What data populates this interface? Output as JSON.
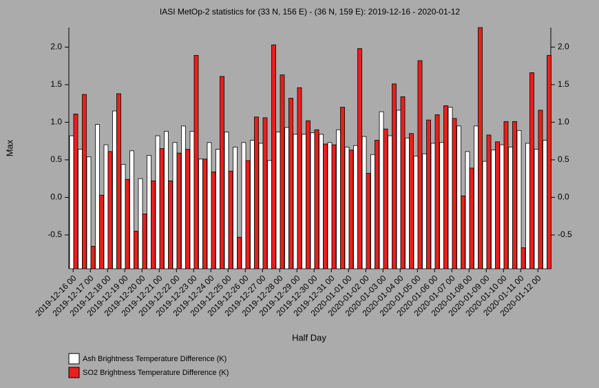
{
  "chart_data": {
    "type": "bar",
    "title": "IASI MetOp-2 statistics for (33 N, 156 E) - (36 N, 159 E): 2019-12-16 - 2020-01-12",
    "x_label": "Half Day",
    "y_label": "Max",
    "categories": [
      "2019-12-16 00",
      null,
      "2019-12-17 00",
      null,
      "2019-12-18 00",
      null,
      "2019-12-19 00",
      null,
      "2019-12-20 00",
      null,
      "2019-12-21 00",
      null,
      "2019-12-22 00",
      null,
      "2019-12-23 00",
      null,
      "2019-12-24 00",
      null,
      "2019-12-25 00",
      null,
      "2019-12-26 00",
      null,
      "2019-12-27 00",
      null,
      "2019-12-28 00",
      null,
      "2019-12-29 00",
      null,
      "2019-12-30 00",
      null,
      "2019-12-31 00",
      null,
      "2020-01-01 00",
      null,
      "2020-01-02 00",
      null,
      "2020-01-03 00",
      null,
      "2020-01-04 00",
      null,
      "2020-01-05 00",
      null,
      "2020-01-06 00",
      null,
      "2020-01-07 00",
      null,
      "2020-01-08 00",
      null,
      "2020-01-09 00",
      null,
      "2020-01-10 00",
      null,
      "2020-01-11 00",
      null,
      "2020-01-12 00",
      null
    ],
    "series": [
      {
        "name": "Ash Brightness Temperature Difference (K)",
        "color": "#ffffff",
        "values": [
          0.82,
          0.64,
          0.54,
          0.97,
          0.7,
          1.15,
          0.44,
          0.62,
          0.25,
          0.56,
          0.82,
          0.88,
          0.73,
          0.95,
          0.88,
          0.51,
          0.73,
          0.64,
          0.87,
          0.67,
          0.73,
          0.76,
          0.72,
          0.49,
          0.87,
          0.93,
          0.84,
          0.84,
          0.86,
          0.84,
          0.73,
          0.9,
          0.67,
          0.69,
          0.81,
          0.57,
          1.14,
          0.82,
          1.16,
          0.79,
          0.55,
          0.58,
          0.72,
          0.73,
          1.2,
          0.95,
          0.61,
          0.95,
          0.48,
          0.63,
          0.7,
          0.67,
          0.89,
          0.72,
          0.64,
          0.76
        ]
      },
      {
        "name": "SO2 Brightness Temperature Difference (K)",
        "color": "#e8201c",
        "values": [
          1.11,
          1.37,
          -0.65,
          0.03,
          0.61,
          1.38,
          0.24,
          -0.45,
          -0.22,
          0.22,
          0.65,
          0.22,
          0.59,
          0.64,
          1.89,
          0.51,
          0.34,
          1.61,
          0.35,
          -0.53,
          0.49,
          1.07,
          1.06,
          2.03,
          1.63,
          1.32,
          1.46,
          1.02,
          0.9,
          0.71,
          0.7,
          1.2,
          0.63,
          1.98,
          0.32,
          0.76,
          0.91,
          1.51,
          1.34,
          0.85,
          1.82,
          1.03,
          1.1,
          1.22,
          1.05,
          0.02,
          0.39,
          2.26,
          0.83,
          0.74,
          1.01,
          1.01,
          -0.67,
          1.66,
          1.16,
          1.89
        ]
      }
    ],
    "ylim": [
      -0.95,
      2.26
    ],
    "yticks": [
      -0.5,
      {
        "value": 0,
        "label": "0.0"
      },
      0.5,
      {
        "value": 1,
        "label": "1.0"
      },
      1.5,
      {
        "value": 2,
        "label": "2.0"
      }
    ]
  }
}
